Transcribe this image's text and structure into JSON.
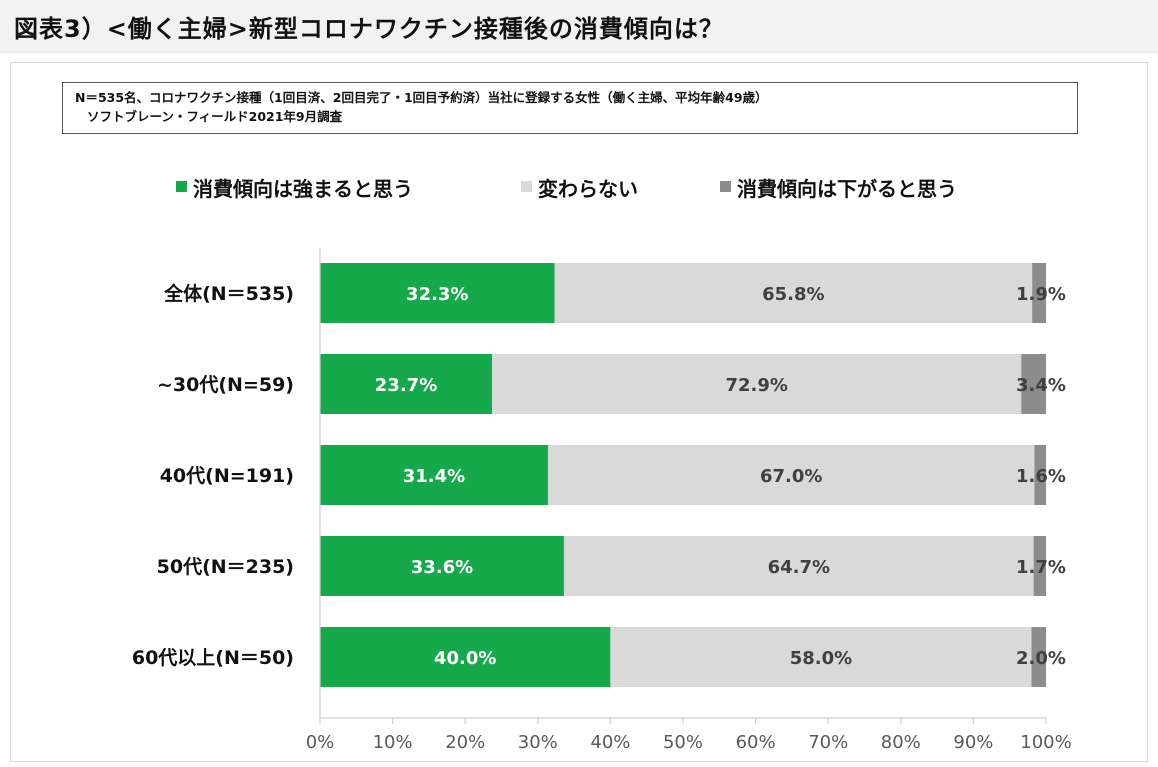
{
  "title": "図表3）<働く主婦>新型コロナワクチン接種後の消費傾向は？",
  "note": {
    "line1": "N＝535名、コロナワクチン接種（1回目済、2回目完了・1回目予約済）当社に登録する女性（働く主婦、平均年齢49歳）",
    "line2": "ソフトブレーン・フィールド2021年9月調査"
  },
  "chart_data": {
    "type": "bar",
    "orientation": "horizontal",
    "stacked": true,
    "percent_stacked": true,
    "categories": [
      "全体(N＝535)",
      "~30代(N=59)",
      "40代(N=191)",
      "50代(N＝235)",
      "60代以上(N＝50)"
    ],
    "series": [
      {
        "name": "消費傾向は強まると思う",
        "color": "#16a94b",
        "values": [
          32.3,
          23.7,
          31.4,
          33.6,
          40.0
        ],
        "labels": [
          "32.3%",
          "23.7%",
          "31.4%",
          "33.6%",
          "40.0%"
        ]
      },
      {
        "name": "変わらない",
        "color": "#d9d9d9",
        "values": [
          65.8,
          72.9,
          67.0,
          64.7,
          58.0
        ],
        "labels": [
          "65.8%",
          "72.9%",
          "67.0%",
          "64.7%",
          "58.0%"
        ]
      },
      {
        "name": "消費傾向は下がると思う",
        "color": "#8c8c8c",
        "values": [
          1.9,
          3.4,
          1.6,
          1.7,
          2.0
        ],
        "labels": [
          "1.9%",
          "3.4%",
          "1.6%",
          "1.7%",
          "2.0%"
        ]
      }
    ],
    "xlim": [
      0,
      100
    ],
    "xticks": [
      "0%",
      "10%",
      "20%",
      "30%",
      "40%",
      "50%",
      "60%",
      "70%",
      "80%",
      "90%",
      "100%"
    ],
    "legend_position": "top",
    "grid": false
  }
}
